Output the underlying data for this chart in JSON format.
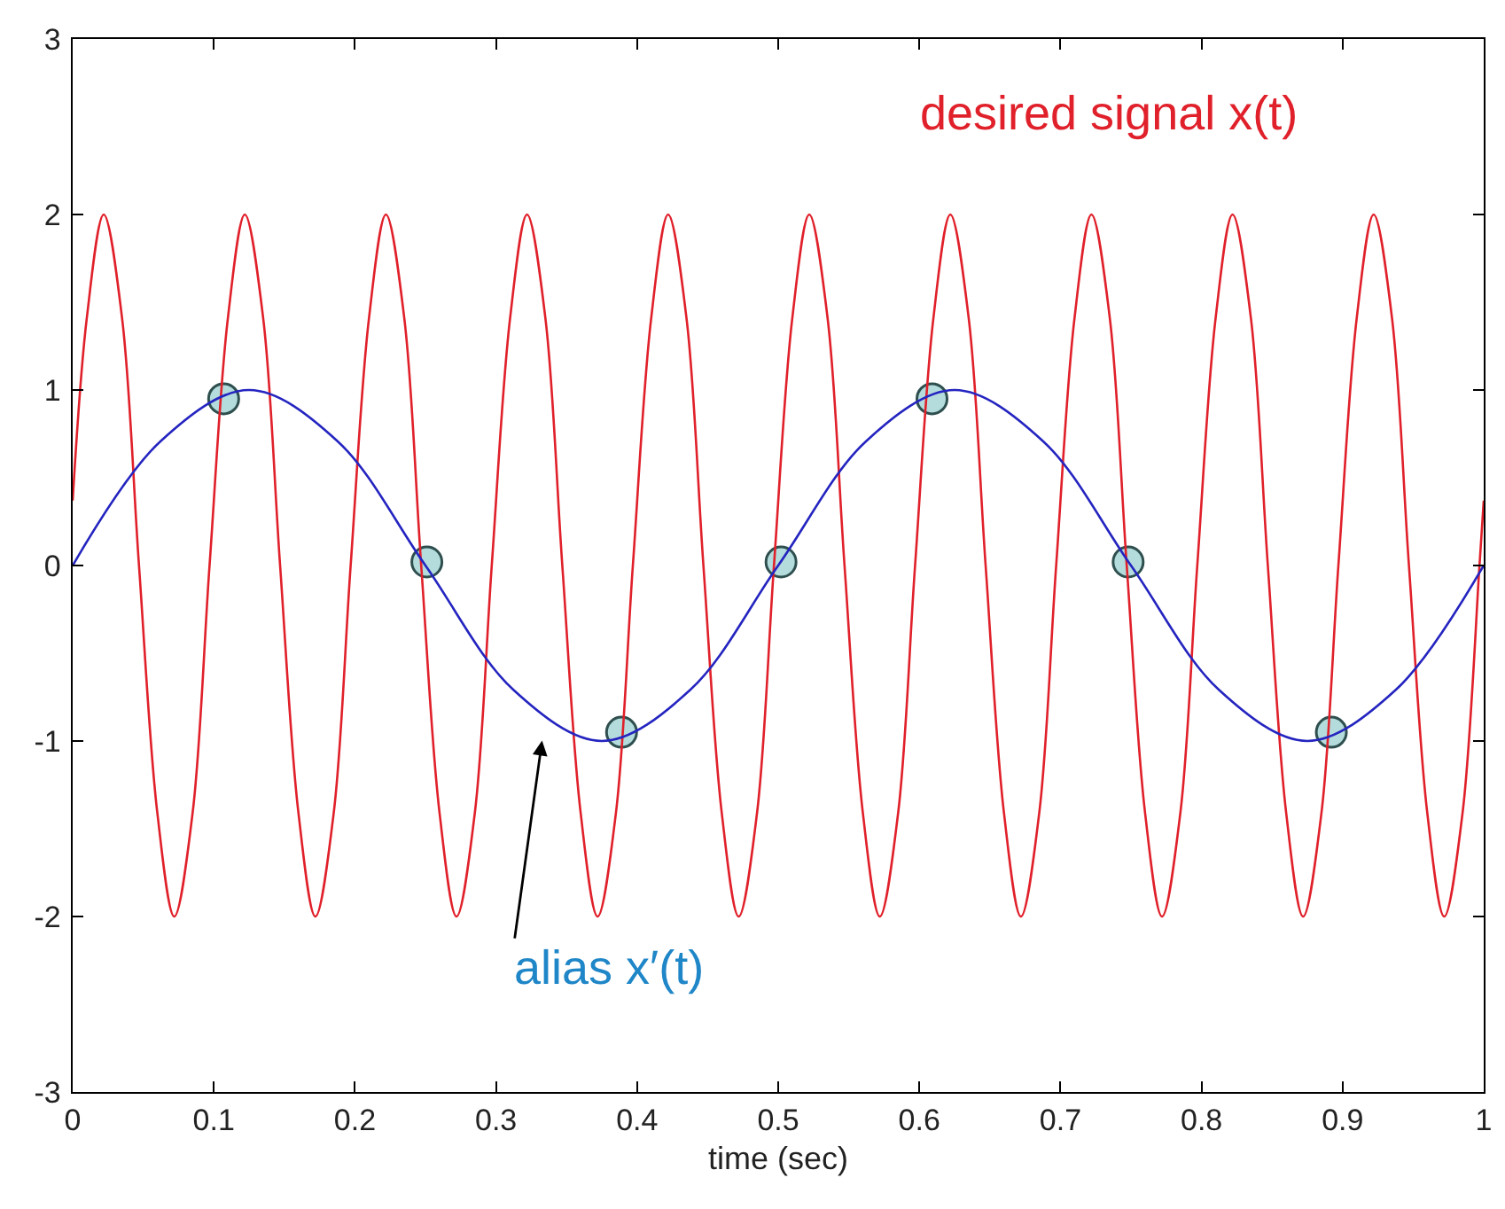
{
  "chart_data": {
    "type": "line",
    "xlabel": "time (sec)",
    "xlim": [
      0,
      1
    ],
    "ylim": [
      -3,
      3
    ],
    "xticks": [
      0,
      0.1,
      0.2,
      0.3,
      0.4,
      0.5,
      0.6,
      0.7,
      0.8,
      0.9,
      1
    ],
    "yticks": [
      -3,
      -2,
      -1,
      0,
      1,
      2,
      3
    ],
    "grid": false,
    "legend": false,
    "series": [
      {
        "name": "desired signal x(t)",
        "color": "#e0202a",
        "x": [
          0,
          0.01,
          0.022,
          0.035,
          0.047,
          0.06,
          0.072,
          0.085,
          0.097,
          0.11,
          0.122,
          0.135,
          0.147,
          0.16,
          0.172,
          0.185,
          0.197,
          0.21,
          0.222,
          0.235,
          0.247,
          0.26,
          0.272,
          0.285,
          0.297,
          0.31,
          0.322,
          0.335,
          0.347,
          0.36,
          0.372,
          0.385,
          0.397,
          0.41,
          0.422,
          0.435,
          0.447,
          0.46,
          0.472,
          0.485,
          0.497,
          0.51,
          0.522,
          0.535,
          0.547,
          0.56,
          0.572,
          0.585,
          0.597,
          0.61,
          0.622,
          0.635,
          0.647,
          0.66,
          0.672,
          0.685,
          0.697,
          0.71,
          0.722,
          0.735,
          0.747,
          0.76,
          0.772,
          0.785,
          0.797,
          0.81,
          0.822,
          0.835,
          0.847,
          0.86,
          0.872,
          0.885,
          0.897,
          0.91,
          0.922,
          0.935,
          0.947,
          0.96,
          0.972,
          0.985,
          0.997,
          1
        ],
        "values": [
          0.37,
          1.41,
          2,
          1.41,
          0,
          -1.41,
          -2,
          -1.41,
          0,
          1.41,
          2,
          1.41,
          0,
          -1.41,
          -2,
          -1.41,
          0,
          1.41,
          2,
          1.41,
          0,
          -1.41,
          -2,
          -1.41,
          0,
          1.41,
          2,
          1.41,
          0,
          -1.41,
          -2,
          -1.41,
          0,
          1.41,
          2,
          1.41,
          0,
          -1.41,
          -2,
          -1.41,
          0,
          1.41,
          2,
          1.41,
          0,
          -1.41,
          -2,
          -1.41,
          0,
          1.41,
          2,
          1.41,
          0,
          -1.41,
          -2,
          -1.41,
          0,
          1.41,
          2,
          1.41,
          0,
          -1.41,
          -2,
          -1.41,
          0,
          1.41,
          2,
          1.41,
          0,
          -1.41,
          -2,
          -1.41,
          0,
          1.41,
          2,
          1.41,
          0,
          -1.41,
          -2,
          -1.41,
          0,
          0.37
        ]
      },
      {
        "color": "#2424c0",
        "x": [
          0,
          0.0625,
          0.125,
          0.1875,
          0.25,
          0.3125,
          0.375,
          0.4375,
          0.5,
          0.5625,
          0.625,
          0.6875,
          0.75,
          0.8125,
          0.875,
          0.9375,
          1
        ],
        "values": [
          0,
          0.71,
          1,
          0.71,
          0,
          -0.71,
          -1,
          -0.71,
          0,
          0.71,
          1,
          0.71,
          0,
          -0.71,
          -1,
          -0.71,
          0
        ]
      },
      {
        "type": "scatter",
        "marker": "circle",
        "color": "#b4dcdc",
        "x": [
          0.107,
          0.251,
          0.389,
          0.502,
          0.609,
          0.748,
          0.892
        ],
        "values": [
          0.95,
          0.02,
          -0.95,
          0.02,
          0.95,
          0.02,
          -0.95
        ]
      }
    ],
    "annotations": [
      "alias x′(t)"
    ]
  }
}
